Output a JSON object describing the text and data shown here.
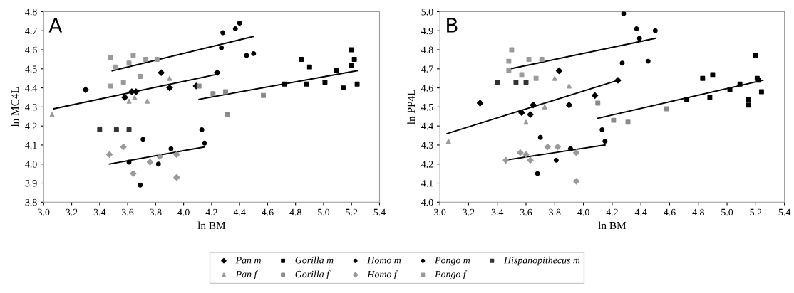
{
  "chart_data": [
    {
      "type": "scatter",
      "xlabel": "ln BM",
      "ylabel": "ln MC4L",
      "annotations": [
        "A"
      ],
      "legend": "bottom",
      "grid": false,
      "xlim": [
        3.0,
        5.4
      ],
      "xticks": [
        {
          "value": 3.0,
          "label": "3.0"
        },
        {
          "value": 3.2,
          "label": "3.2"
        },
        {
          "value": 3.4,
          "label": "3.4"
        },
        {
          "value": 3.6,
          "label": "3.6"
        },
        {
          "value": 3.8,
          "label": "3.8"
        },
        {
          "value": 4.0,
          "label": "4.0"
        },
        {
          "value": 4.2,
          "label": "4.2"
        },
        {
          "value": 4.4,
          "label": "4.4"
        },
        {
          "value": 4.6,
          "label": "4.6"
        },
        {
          "value": 4.8,
          "label": "4.8"
        },
        {
          "value": 5.0,
          "label": "5.0"
        },
        {
          "value": 5.2,
          "label": "5.2"
        },
        {
          "value": 5.4,
          "label": "5.4"
        }
      ],
      "ylim": [
        3.8,
        4.8
      ],
      "yticks": [
        {
          "value": 3.8,
          "label": "3.8"
        },
        {
          "value": 3.9,
          "label": "3.9"
        },
        {
          "value": 4.0,
          "label": "4.0"
        },
        {
          "value": 4.1,
          "label": "4.1"
        },
        {
          "value": 4.2,
          "label": "4.2"
        },
        {
          "value": 4.3,
          "label": "4.3"
        },
        {
          "value": 4.4,
          "label": "4.4"
        },
        {
          "value": 4.5,
          "label": "4.5"
        },
        {
          "value": 4.6,
          "label": "4.6"
        },
        {
          "value": 4.7,
          "label": "4.7"
        },
        {
          "value": 4.8,
          "label": "4.8"
        }
      ],
      "series": [
        {
          "name": "Pan m",
          "color": "#000000",
          "marker": "diamond",
          "x": [
            3.3,
            3.63,
            3.58,
            3.66,
            3.84,
            3.9,
            4.09,
            4.24
          ],
          "values": [
            4.39,
            4.38,
            4.35,
            4.38,
            4.48,
            4.4,
            4.41,
            4.48
          ]
        },
        {
          "name": "Pan f",
          "color": "#9a9a9a",
          "marker": "triangle",
          "x": [
            3.06,
            3.65,
            3.74,
            3.9,
            3.61
          ],
          "values": [
            4.26,
            4.35,
            4.33,
            4.45,
            4.33
          ]
        },
        {
          "name": "Gorilla m",
          "color": "#000000",
          "marker": "square",
          "x": [
            4.84,
            4.9,
            5.2,
            5.22,
            5.2,
            5.09,
            4.72,
            4.88,
            5.01,
            5.14,
            5.24
          ],
          "values": [
            4.55,
            4.51,
            4.6,
            4.55,
            4.52,
            4.49,
            4.42,
            4.42,
            4.43,
            4.4,
            4.42
          ]
        },
        {
          "name": "Gorilla f",
          "color": "#8a8a8a",
          "marker": "square",
          "x": [
            4.21,
            4.3,
            4.57,
            4.31,
            4.11
          ],
          "values": [
            4.37,
            4.38,
            4.36,
            4.26,
            4.41
          ]
        },
        {
          "name": "Homo m",
          "color": "#000000",
          "marker": "circle",
          "x": [
            3.71,
            4.13,
            4.15,
            3.91,
            3.82,
            3.69,
            3.61
          ],
          "values": [
            4.13,
            4.18,
            4.11,
            4.08,
            4.0,
            3.89,
            4.01
          ]
        },
        {
          "name": "Homo f",
          "color": "#9a9a9a",
          "marker": "diamond",
          "x": [
            3.47,
            3.57,
            3.64,
            3.76,
            3.95,
            3.95,
            3.83
          ],
          "values": [
            4.05,
            4.09,
            3.95,
            4.01,
            3.93,
            4.05,
            4.04
          ]
        },
        {
          "name": "Pongo m",
          "color": "#000000",
          "marker": "circle",
          "x": [
            4.28,
            4.37,
            4.4,
            4.27,
            4.45,
            4.5
          ],
          "values": [
            4.69,
            4.71,
            4.74,
            4.61,
            4.57,
            4.58
          ]
        },
        {
          "name": "Pongo f",
          "color": "#9a9a9a",
          "marker": "square",
          "x": [
            3.48,
            3.64,
            3.51,
            3.61,
            3.73,
            3.81,
            3.69,
            3.48,
            3.57
          ],
          "values": [
            4.56,
            4.57,
            4.51,
            4.53,
            4.55,
            4.55,
            4.46,
            4.41,
            4.43
          ]
        },
        {
          "name": "Hispanopithecus m",
          "color": "#333333",
          "marker": "square",
          "x": [
            3.4,
            3.52,
            3.61
          ],
          "values": [
            4.18,
            4.18,
            4.18
          ]
        },
        {
          "type": "line",
          "color": "#000000",
          "x": [
            3.49,
            4.5
          ],
          "values": [
            4.49,
            4.67
          ]
        },
        {
          "type": "line",
          "color": "#000000",
          "x": [
            3.07,
            4.23
          ],
          "values": [
            4.29,
            4.47
          ]
        },
        {
          "type": "line",
          "color": "#000000",
          "x": [
            4.11,
            5.24
          ],
          "values": [
            4.34,
            4.49
          ]
        },
        {
          "type": "line",
          "color": "#000000",
          "x": [
            3.47,
            4.15
          ],
          "values": [
            4.0,
            4.09
          ]
        }
      ]
    },
    {
      "type": "scatter",
      "xlabel": "ln BM",
      "ylabel": "ln PP4L",
      "annotations": [
        "B"
      ],
      "grid": false,
      "xlim": [
        3.0,
        5.4
      ],
      "xticks": [
        {
          "value": 3.0,
          "label": "3.0"
        },
        {
          "value": 3.2,
          "label": "3.2"
        },
        {
          "value": 3.4,
          "label": "3.4"
        },
        {
          "value": 3.6,
          "label": "3.6"
        },
        {
          "value": 3.8,
          "label": "3.8"
        },
        {
          "value": 4.0,
          "label": "4.0"
        },
        {
          "value": 4.2,
          "label": "4.2"
        },
        {
          "value": 4.4,
          "label": "4.4"
        },
        {
          "value": 4.6,
          "label": "4.6"
        },
        {
          "value": 4.8,
          "label": "4.8"
        },
        {
          "value": 5.0,
          "label": "5.0"
        },
        {
          "value": 5.2,
          "label": "5.2"
        },
        {
          "value": 5.4,
          "label": "5.4"
        }
      ],
      "ylim": [
        4.0,
        5.0
      ],
      "yticks": [
        {
          "value": 4.0,
          "label": "4.0"
        },
        {
          "value": 4.1,
          "label": "4.1"
        },
        {
          "value": 4.2,
          "label": "4.2"
        },
        {
          "value": 4.3,
          "label": "4.3"
        },
        {
          "value": 4.4,
          "label": "4.4"
        },
        {
          "value": 4.5,
          "label": "4.5"
        },
        {
          "value": 4.6,
          "label": "4.6"
        },
        {
          "value": 4.7,
          "label": "4.7"
        },
        {
          "value": 4.8,
          "label": "4.8"
        },
        {
          "value": 4.9,
          "label": "4.9"
        },
        {
          "value": 5.0,
          "label": "5.0"
        }
      ],
      "series": [
        {
          "name": "Pan m",
          "color": "#000000",
          "marker": "diamond",
          "x": [
            3.28,
            3.63,
            3.57,
            3.65,
            3.83,
            3.9,
            4.08,
            4.24
          ],
          "values": [
            4.52,
            4.46,
            4.47,
            4.51,
            4.69,
            4.51,
            4.56,
            4.64
          ]
        },
        {
          "name": "Pan f",
          "color": "#9a9a9a",
          "marker": "triangle",
          "x": [
            3.06,
            3.6,
            3.73,
            3.9,
            3.8
          ],
          "values": [
            4.32,
            4.42,
            4.5,
            4.61,
            4.65
          ]
        },
        {
          "name": "Gorilla m",
          "color": "#000000",
          "marker": "square",
          "x": [
            4.83,
            4.9,
            5.2,
            5.21,
            5.22,
            5.09,
            4.72,
            4.88,
            5.02,
            5.15,
            5.15,
            5.24
          ],
          "values": [
            4.65,
            4.67,
            4.77,
            4.65,
            4.64,
            4.62,
            4.54,
            4.55,
            4.59,
            4.54,
            4.51,
            4.58
          ]
        },
        {
          "name": "Gorilla f",
          "color": "#8a8a8a",
          "marker": "square",
          "x": [
            4.21,
            4.31,
            4.58,
            4.1
          ],
          "values": [
            4.43,
            4.42,
            4.49,
            4.52
          ]
        },
        {
          "name": "Homo m",
          "color": "#000000",
          "marker": "circle",
          "x": [
            3.7,
            4.13,
            4.15,
            3.91,
            3.81,
            3.68
          ],
          "values": [
            4.34,
            4.38,
            4.32,
            4.28,
            4.22,
            4.15
          ]
        },
        {
          "name": "Homo f",
          "color": "#9a9a9a",
          "marker": "diamond",
          "x": [
            3.46,
            3.56,
            3.6,
            3.63,
            3.75,
            3.82,
            3.95,
            3.95
          ],
          "values": [
            4.22,
            4.26,
            4.25,
            4.22,
            4.29,
            4.29,
            4.26,
            4.11
          ]
        },
        {
          "name": "Pongo m",
          "color": "#000000",
          "marker": "circle",
          "x": [
            4.28,
            4.37,
            4.39,
            4.5,
            4.27,
            4.45
          ],
          "values": [
            4.99,
            4.91,
            4.86,
            4.9,
            4.73,
            4.74
          ]
        },
        {
          "name": "Pongo f",
          "color": "#9a9a9a",
          "marker": "square",
          "x": [
            3.48,
            3.5,
            3.62,
            3.71,
            3.57,
            3.48,
            3.67
          ],
          "values": [
            4.74,
            4.8,
            4.75,
            4.75,
            4.67,
            4.69,
            4.65
          ]
        },
        {
          "name": "Hispanopithecus m",
          "color": "#333333",
          "marker": "square",
          "x": [
            3.4,
            3.53,
            3.6
          ],
          "values": [
            4.63,
            4.63,
            4.63
          ]
        },
        {
          "type": "line",
          "color": "#000000",
          "x": [
            3.49,
            4.5
          ],
          "values": [
            4.7,
            4.86
          ]
        },
        {
          "type": "line",
          "color": "#000000",
          "x": [
            3.05,
            4.24
          ],
          "values": [
            4.36,
            4.64
          ]
        },
        {
          "type": "line",
          "color": "#000000",
          "x": [
            4.1,
            5.25
          ],
          "values": [
            4.44,
            4.64
          ]
        },
        {
          "type": "line",
          "color": "#000000",
          "x": [
            3.45,
            4.15
          ],
          "values": [
            4.22,
            4.3
          ]
        }
      ]
    }
  ]
}
